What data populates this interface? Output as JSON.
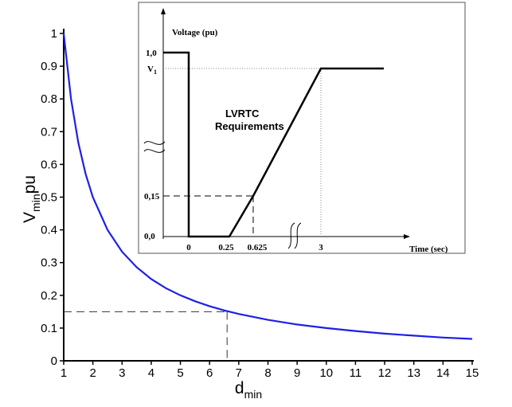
{
  "chart_data": [
    {
      "type": "line",
      "xlabel": "d",
      "xlabel_sub": "min",
      "ylabel": "V",
      "ylabel_sub": "min",
      "ylabel_suffix": "pu",
      "xlim": [
        1,
        15
      ],
      "ylim": [
        0,
        1
      ],
      "x_ticks": [
        "1",
        "2",
        "3",
        "4",
        "5",
        "6",
        "7",
        "8",
        "9",
        "10",
        "11",
        "12",
        "13",
        "14",
        "15"
      ],
      "y_ticks": [
        "0",
        "0.1",
        "0.2",
        "0.3",
        "0.4",
        "0.5",
        "0.6",
        "0.7",
        "0.8",
        "0.9",
        "1"
      ],
      "grid": false,
      "line_color": "#1f1fe6",
      "series": [
        {
          "x": [
            1,
            1.25,
            1.5,
            1.75,
            2,
            2.5,
            3,
            3.5,
            4,
            4.5,
            5,
            5.5,
            6,
            6.5,
            7,
            8,
            9,
            10,
            11,
            12,
            13,
            14,
            15
          ],
          "y": [
            1.0,
            0.8,
            0.667,
            0.571,
            0.5,
            0.4,
            0.333,
            0.286,
            0.25,
            0.222,
            0.2,
            0.182,
            0.167,
            0.154,
            0.143,
            0.125,
            0.111,
            0.1,
            0.091,
            0.083,
            0.077,
            0.071,
            0.067
          ]
        }
      ],
      "annotation": {
        "x": 6.6,
        "y": 0.15,
        "style": "dashed"
      }
    },
    {
      "type": "line",
      "title": "LVRTC Requirements",
      "ylabel": "Voltage (pu)",
      "xlabel": "Time (sec)",
      "y_tick_labels": [
        "1,0",
        "V1",
        "0,15",
        "0,0"
      ],
      "x_tick_labels": [
        "0",
        "0.25",
        "0.625",
        "3"
      ],
      "series": [
        {
          "points": [
            {
              "t": "start",
              "v": "1,0"
            },
            {
              "t": "0",
              "v": "1,0"
            },
            {
              "t": "0",
              "v": "0,0"
            },
            {
              "t": "0.25",
              "v": "0,0"
            },
            {
              "t": "0.625",
              "v": "0,15"
            },
            {
              "t": "3",
              "v": "V1"
            }
          ]
        }
      ]
    }
  ]
}
